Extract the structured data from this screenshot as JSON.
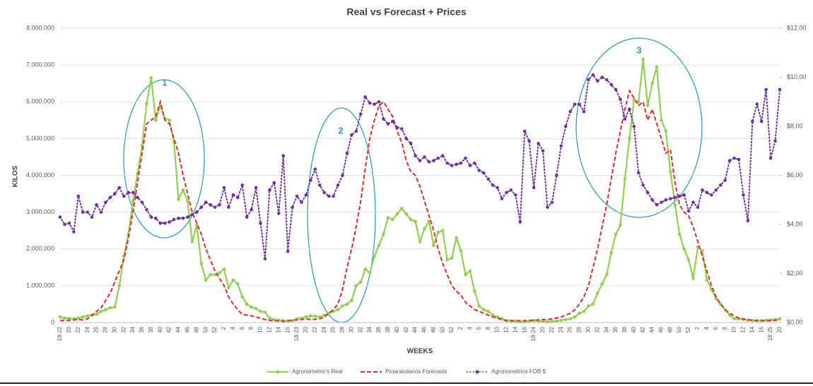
{
  "chart_data": {
    "type": "line",
    "title": "Real vs Forecast + Prices",
    "xlabel": "WEEKS",
    "ylabel": "KILOS",
    "annotations": [
      "1",
      "2",
      "3"
    ],
    "categories": [
      "18-22",
      null,
      "20",
      null,
      "22",
      null,
      "24",
      null,
      "26",
      null,
      "28",
      null,
      "30",
      null,
      "32",
      null,
      "34",
      null,
      "36",
      null,
      "38",
      null,
      "40",
      null,
      "42",
      null,
      "44",
      null,
      "46",
      null,
      "48",
      null,
      "50",
      null,
      "52",
      null,
      "2",
      null,
      "4",
      null,
      "6",
      null,
      "8",
      null,
      "10",
      null,
      "12",
      null,
      "14",
      null,
      "16",
      null,
      "18-23",
      null,
      "20",
      null,
      "22",
      null,
      "24",
      null,
      "26",
      null,
      "28",
      null,
      "30",
      null,
      "32",
      null,
      "34",
      null,
      "36",
      null,
      "38",
      null,
      "40",
      null,
      "42",
      null,
      "44",
      null,
      "46",
      null,
      "48",
      null,
      "50",
      null,
      "52",
      null,
      "2",
      null,
      "4",
      null,
      "6",
      null,
      "8",
      null,
      "10",
      null,
      "12",
      null,
      "14",
      null,
      "16",
      null,
      "18-24",
      null,
      "20",
      null,
      "22",
      null,
      "24",
      null,
      "26",
      null,
      "28",
      null,
      "30",
      null,
      "32",
      null,
      "34",
      null,
      "36",
      null,
      "38",
      null,
      "40",
      null,
      "42",
      null,
      "44",
      null,
      "46",
      null,
      "48",
      null,
      "50",
      null,
      "52",
      null,
      "2",
      null,
      "4",
      null,
      "6",
      null,
      "8",
      null,
      "10",
      null,
      "12",
      null,
      "14",
      null,
      "16",
      null,
      "18 25",
      null,
      "20"
    ],
    "series": [
      {
        "name": "Agronometric's Real",
        "color": "#8fd14f",
        "style": "solid",
        "marker": "circle",
        "values": [
          150000,
          120000,
          110000,
          100000,
          120000,
          150000,
          180000,
          200000,
          220000,
          300000,
          350000,
          400000,
          420000,
          1000000,
          1800000,
          2400000,
          3300000,
          4050000,
          4800000,
          5950000,
          6650000,
          5500000,
          5900000,
          5550000,
          5500000,
          4900000,
          3350000,
          3600000,
          3300000,
          2200000,
          2650000,
          1600000,
          1150000,
          1300000,
          1300000,
          1350000,
          1450000,
          950000,
          1150000,
          1050000,
          700000,
          500000,
          420000,
          380000,
          300000,
          280000,
          120000,
          80000,
          60000,
          50000,
          40000,
          50000,
          100000,
          120000,
          150000,
          180000,
          170000,
          150000,
          200000,
          250000,
          300000,
          350000,
          450000,
          500000,
          600000,
          1000000,
          1100000,
          1450000,
          1350000,
          1800000,
          2100000,
          2400000,
          2850000,
          2800000,
          2950000,
          3100000,
          2950000,
          2800000,
          2750000,
          2200000,
          2550000,
          2750000,
          2100000,
          2450000,
          2500000,
          1700000,
          1750000,
          2300000,
          1950000,
          1300000,
          1400000,
          850000,
          450000,
          350000,
          300000,
          200000,
          150000,
          100000,
          50000,
          40000,
          30000,
          20000,
          20000,
          30000,
          50000,
          40000,
          30000,
          20000,
          30000,
          40000,
          60000,
          80000,
          100000,
          150000,
          250000,
          300000,
          450000,
          500000,
          800000,
          1050000,
          1300000,
          1900000,
          2400000,
          2650000,
          3900000,
          5000000,
          6050000,
          6000000,
          7150000,
          5900000,
          6500000,
          6950000,
          5500000,
          5200000,
          4100000,
          3200000,
          2400000,
          2000000,
          1700000,
          1200000,
          2050000,
          1950000,
          1150000,
          900000,
          650000,
          500000,
          350000,
          200000,
          100000,
          100000,
          80000,
          60000,
          50000,
          50000,
          50000,
          60000,
          70000,
          80000,
          100000
        ]
      },
      {
        "name": "Proarandanos Forecasts",
        "color": "#e8282b",
        "style": "dashed",
        "values": [
          50000,
          60000,
          60000,
          70000,
          80000,
          70000,
          100000,
          200000,
          300000,
          400000,
          600000,
          800000,
          1100000,
          1400000,
          1700000,
          2300000,
          3000000,
          3800000,
          4600000,
          5400000,
          5500000,
          5600000,
          6000000,
          5500000,
          5400000,
          5000000,
          4600000,
          4000000,
          3500000,
          3000000,
          2700000,
          2400000,
          2000000,
          1700000,
          1400000,
          1200000,
          1000000,
          700000,
          500000,
          350000,
          220000,
          200000,
          180000,
          150000,
          120000,
          80000,
          60000,
          50000,
          40000,
          30000,
          50000,
          60000,
          70000,
          80000,
          100000,
          80000,
          90000,
          100000,
          150000,
          250000,
          350000,
          500000,
          900000,
          1500000,
          2000000,
          2600000,
          3300000,
          4200000,
          5000000,
          5500000,
          5900000,
          6000000,
          5800000,
          5600000,
          5200000,
          4900000,
          4400000,
          4100000,
          4000000,
          3700000,
          3300000,
          2900000,
          2500000,
          2000000,
          1600000,
          1300000,
          1000000,
          850000,
          750000,
          550000,
          450000,
          350000,
          300000,
          250000,
          200000,
          150000,
          120000,
          80000,
          50000,
          50000,
          50000,
          50000,
          50000,
          60000,
          60000,
          70000,
          80000,
          80000,
          100000,
          120000,
          150000,
          200000,
          250000,
          350000,
          500000,
          700000,
          1000000,
          1500000,
          2000000,
          2600000,
          3200000,
          3900000,
          4600000,
          5200000,
          5800000,
          6300000,
          6100000,
          5900000,
          6000000,
          5500000,
          5800000,
          5400000,
          5000000,
          4600000,
          4700000,
          3800000,
          3200000,
          3000000,
          2900000,
          2600000,
          2200000,
          1800000,
          1400000,
          1000000,
          700000,
          500000,
          350000,
          250000,
          180000,
          120000,
          100000,
          80000,
          60000,
          50000,
          50000,
          50000,
          50000,
          60000,
          80000
        ]
      },
      {
        "name": "Agronometrics FOB $",
        "color": "#7030a0",
        "style": "dotted",
        "marker": "circle",
        "axis": "y2",
        "values": [
          4.3,
          4.0,
          4.05,
          3.7,
          5.15,
          4.5,
          4.5,
          4.3,
          4.8,
          4.5,
          4.9,
          5.1,
          5.25,
          5.5,
          5.15,
          5.3,
          5.3,
          5.1,
          4.9,
          4.6,
          4.3,
          4.25,
          4.05,
          4.05,
          4.1,
          4.2,
          4.25,
          4.25,
          4.3,
          4.4,
          4.5,
          4.7,
          4.9,
          4.8,
          4.7,
          4.8,
          5.5,
          4.7,
          5.2,
          5.1,
          5.6,
          4.3,
          4.6,
          5.5,
          4.05,
          2.6,
          5.4,
          5.7,
          4.45,
          6.8,
          2.9,
          4.7,
          5.15,
          4.9,
          5.2,
          5.8,
          6.25,
          5.6,
          5.3,
          5.15,
          5.15,
          5.6,
          6.0,
          6.9,
          7.65,
          7.8,
          8.5,
          9.2,
          8.95,
          8.9,
          9.0,
          8.3,
          8.1,
          8.2,
          7.95,
          7.9,
          7.5,
          7.3,
          6.8,
          6.6,
          6.75,
          6.55,
          6.6,
          6.7,
          6.8,
          6.5,
          6.4,
          6.45,
          6.5,
          6.7,
          6.4,
          6.5,
          6.2,
          6.1,
          5.85,
          5.6,
          5.5,
          5.05,
          5.3,
          5.4,
          5.2,
          4.1,
          7.8,
          7.4,
          5.5,
          7.3,
          7.0,
          4.7,
          4.9,
          6.0,
          7.2,
          8.0,
          8.6,
          8.9,
          8.9,
          8.6,
          9.9,
          10.1,
          9.85,
          10.0,
          9.9,
          9.7,
          9.5,
          9.1,
          8.3,
          8.7,
          8.0,
          6.1,
          5.6,
          5.3,
          5.0,
          4.8,
          4.9,
          5.0,
          5.05,
          5.1,
          5.15,
          5.2,
          4.55,
          4.9,
          4.7,
          5.4,
          5.3,
          5.2,
          5.4,
          5.6,
          5.8,
          6.6,
          6.7,
          6.65,
          5.2,
          4.15,
          8.2,
          8.9,
          8.2,
          9.5,
          6.7,
          7.4,
          9.5
        ]
      }
    ],
    "ylim": [
      0,
      8000000
    ],
    "yticks": [
      {
        "value": 0,
        "label": "0"
      },
      {
        "value": 1000000,
        "label": "1.000.000"
      },
      {
        "value": 2000000,
        "label": "2.000.000"
      },
      {
        "value": 3000000,
        "label": "3.000.000"
      },
      {
        "value": 4000000,
        "label": "4.000.000"
      },
      {
        "value": 5000000,
        "label": "5.000.000"
      },
      {
        "value": 6000000,
        "label": "6.000.000"
      },
      {
        "value": 7000000,
        "label": "7.000.000"
      },
      {
        "value": 8000000,
        "label": "8.000.000"
      }
    ],
    "y2lim": [
      0,
      12
    ],
    "y2ticks": [
      {
        "value": 0,
        "label": "$0,00"
      },
      {
        "value": 2,
        "label": "$2,00"
      },
      {
        "value": 4,
        "label": "$4,00"
      },
      {
        "value": 6,
        "label": "$6,00"
      },
      {
        "value": 8,
        "label": "$8,00"
      },
      {
        "value": 10,
        "label": "$10,00"
      },
      {
        "value": 12,
        "label": "$12,00"
      }
    ],
    "grid": true,
    "legend": "bottom"
  }
}
